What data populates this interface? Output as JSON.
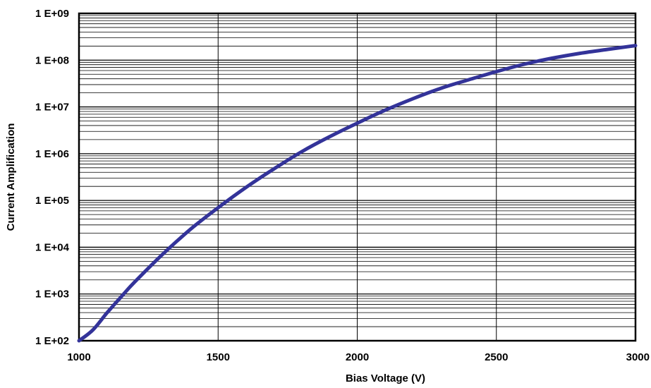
{
  "chart_data": {
    "type": "line",
    "title": "",
    "xlabel": "Bias Voltage (V)",
    "ylabel": "Current Amplification",
    "xlim": [
      1000,
      3000
    ],
    "ylim": [
      100,
      1000000000
    ],
    "yscale": "log",
    "grid": true,
    "legend": "none",
    "x_ticks": [
      1000,
      1500,
      2000,
      2500,
      3000
    ],
    "x_tick_labels": [
      "1000",
      "1500",
      "2000",
      "2500",
      "3000"
    ],
    "y_ticks": [
      100,
      1000,
      10000,
      100000,
      1000000,
      10000000,
      100000000,
      1000000000
    ],
    "y_tick_labels": [
      "1 E+02",
      "1 E+03",
      "1 E+04",
      "1 E+05",
      "1 E+06",
      "1 E+07",
      "1 E+08",
      "1 E+09"
    ],
    "series": [
      {
        "color": "#333399",
        "points": [
          [
            1000,
            100
          ],
          [
            1050,
            170
          ],
          [
            1100,
            390
          ],
          [
            1150,
            850
          ],
          [
            1200,
            1800
          ],
          [
            1300,
            7000
          ],
          [
            1400,
            24000
          ],
          [
            1500,
            70000
          ],
          [
            1600,
            190000
          ],
          [
            1700,
            470000
          ],
          [
            1800,
            1100000
          ],
          [
            1900,
            2300000
          ],
          [
            2000,
            4500000
          ],
          [
            2100,
            8500000
          ],
          [
            2200,
            15000000
          ],
          [
            2300,
            25000000
          ],
          [
            2400,
            38000000
          ],
          [
            2500,
            57000000
          ],
          [
            2600,
            82000000
          ],
          [
            2700,
            110000000
          ],
          [
            2800,
            140000000
          ],
          [
            2900,
            170000000
          ],
          [
            3000,
            205000000
          ]
        ]
      }
    ]
  }
}
